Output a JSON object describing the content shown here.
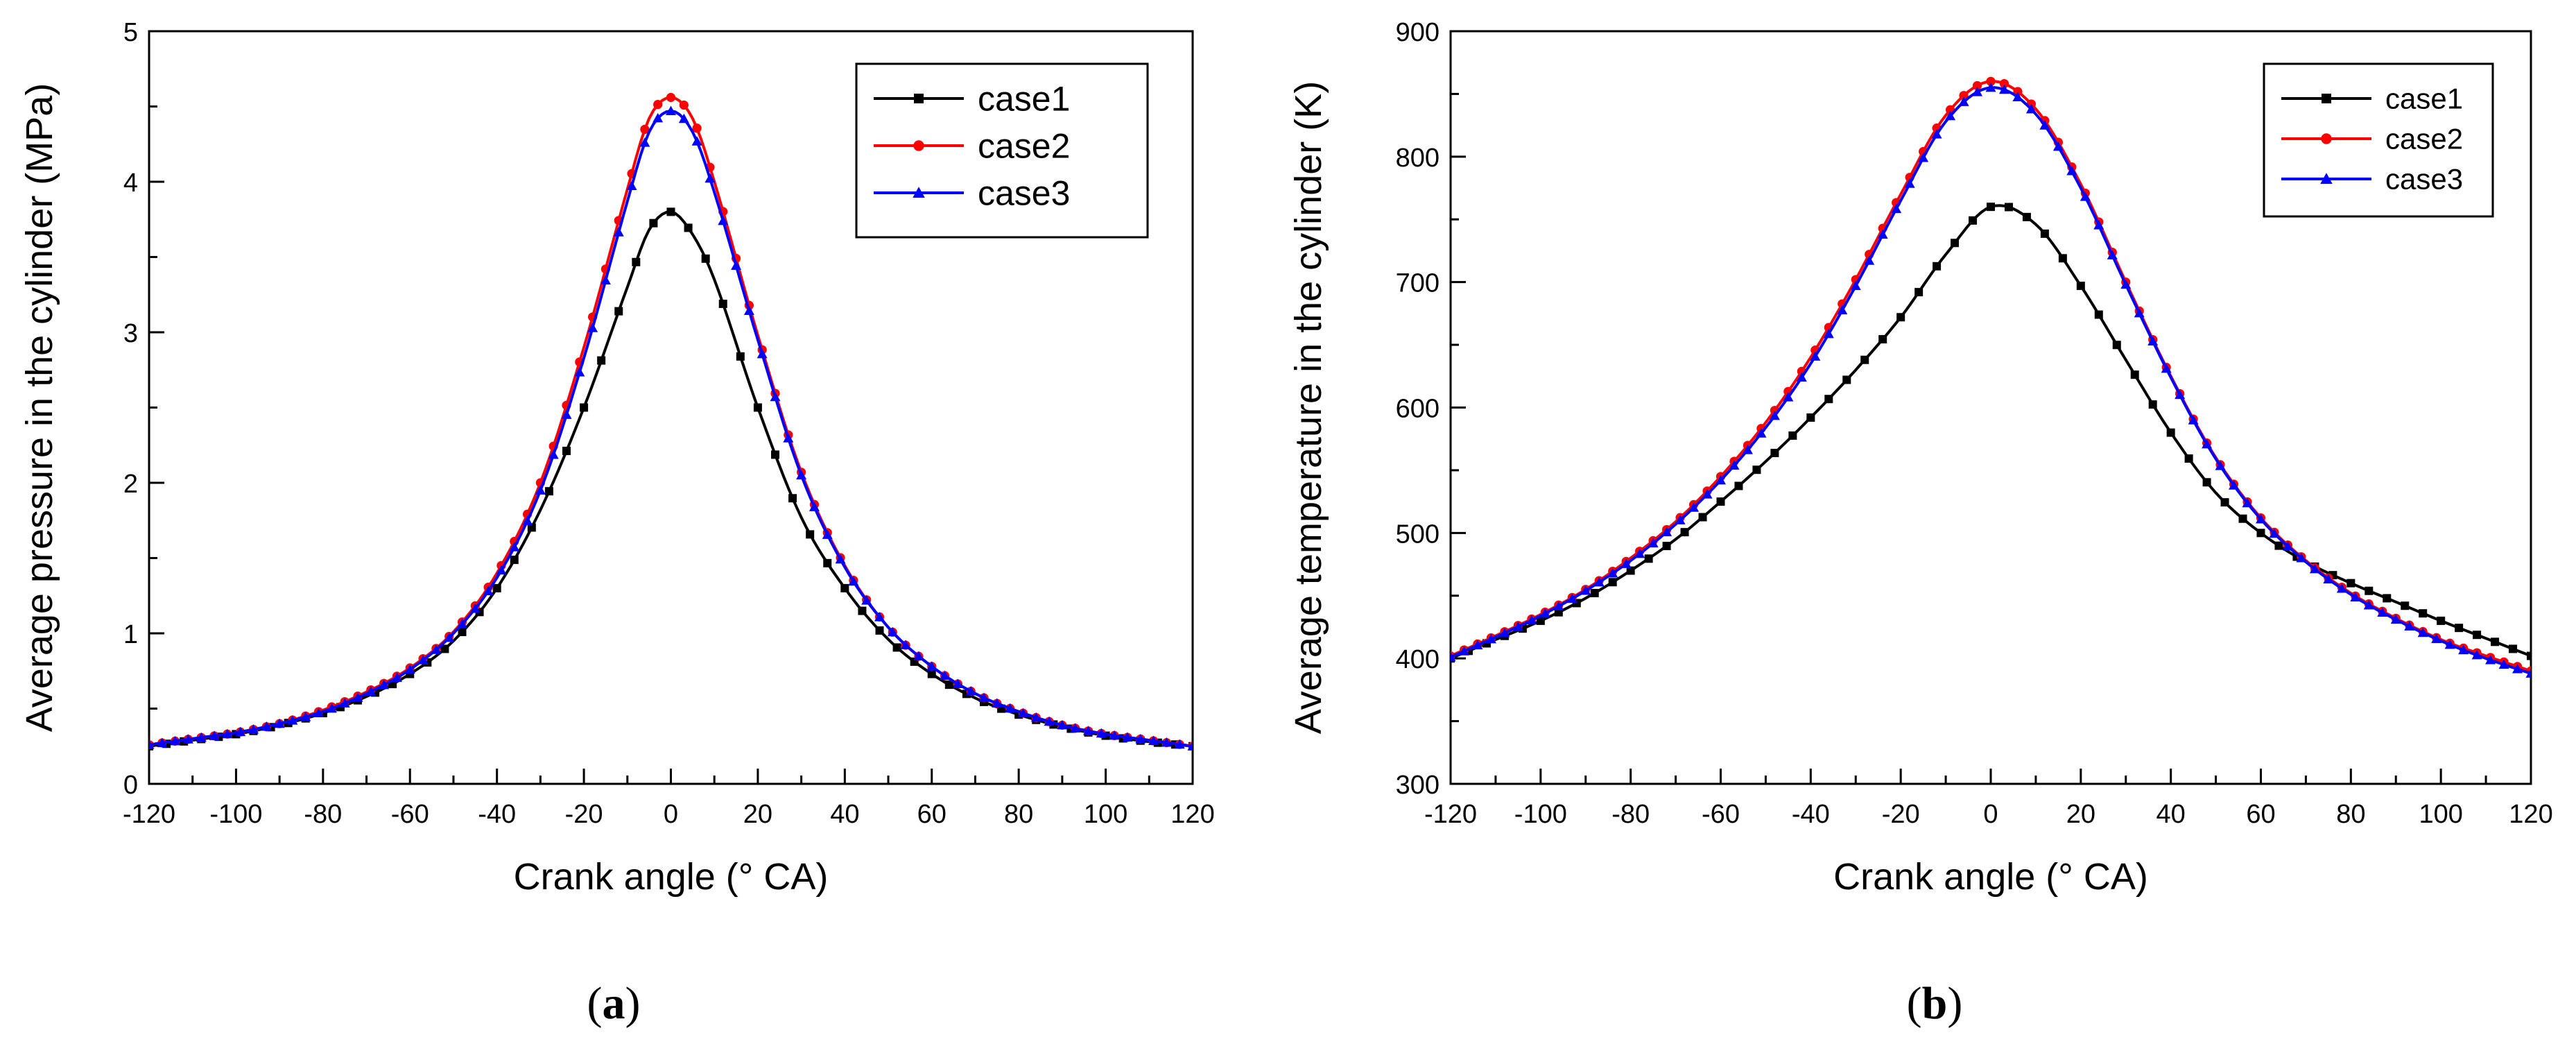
{
  "chart_data": [
    {
      "id": "a",
      "type": "line",
      "caption": "(a)",
      "caption_parts": [
        "(",
        "a",
        ")"
      ],
      "xlabel": "Crank angle (° CA)",
      "ylabel": "Average pressure in the cylinder (MPa)",
      "xlim": [
        -120,
        120
      ],
      "ylim": [
        0,
        5
      ],
      "xticks": [
        -120,
        -100,
        -80,
        -60,
        -40,
        -20,
        0,
        20,
        40,
        60,
        80,
        100,
        120
      ],
      "yticks": [
        0,
        1,
        2,
        3,
        4,
        5
      ],
      "legend_position": "top-right",
      "series": [
        {
          "name": "case1",
          "color": "#000000",
          "marker": "square",
          "x": [
            -120,
            -110,
            -100,
            -90,
            -80,
            -70,
            -60,
            -50,
            -40,
            -30,
            -20,
            -10,
            -5,
            0,
            5,
            10,
            20,
            30,
            40,
            50,
            60,
            70,
            80,
            90,
            100,
            110,
            120
          ],
          "y": [
            0.25,
            0.29,
            0.33,
            0.39,
            0.47,
            0.58,
            0.73,
            0.95,
            1.3,
            1.82,
            2.5,
            3.3,
            3.68,
            3.8,
            3.65,
            3.35,
            2.5,
            1.77,
            1.3,
            0.96,
            0.73,
            0.57,
            0.46,
            0.38,
            0.32,
            0.28,
            0.25
          ]
        },
        {
          "name": "case2",
          "color": "#ff0000",
          "marker": "circle",
          "x": [
            -120,
            -110,
            -100,
            -90,
            -80,
            -70,
            -60,
            -50,
            -40,
            -30,
            -20,
            -10,
            -5,
            0,
            5,
            10,
            20,
            30,
            40,
            50,
            60,
            70,
            80,
            90,
            100,
            110,
            120
          ],
          "y": [
            0.26,
            0.3,
            0.34,
            0.4,
            0.49,
            0.61,
            0.77,
            1.01,
            1.4,
            2.0,
            2.9,
            3.95,
            4.42,
            4.56,
            4.42,
            4.0,
            2.98,
            2.07,
            1.45,
            1.04,
            0.78,
            0.6,
            0.48,
            0.39,
            0.33,
            0.29,
            0.25
          ]
        },
        {
          "name": "case3",
          "color": "#0000ff",
          "marker": "triangle",
          "x": [
            -120,
            -110,
            -100,
            -90,
            -80,
            -70,
            -60,
            -50,
            -40,
            -30,
            -20,
            -10,
            -5,
            0,
            5,
            10,
            20,
            30,
            40,
            50,
            60,
            70,
            80,
            90,
            100,
            110,
            120
          ],
          "y": [
            0.26,
            0.3,
            0.34,
            0.4,
            0.48,
            0.6,
            0.76,
            1.0,
            1.37,
            1.95,
            2.83,
            3.87,
            4.33,
            4.47,
            4.33,
            3.93,
            2.95,
            2.05,
            1.44,
            1.04,
            0.78,
            0.6,
            0.48,
            0.39,
            0.33,
            0.29,
            0.25
          ]
        }
      ]
    },
    {
      "id": "b",
      "type": "line",
      "caption": "(b)",
      "caption_parts": [
        "(",
        "b",
        ")"
      ],
      "xlabel": "Crank angle (° CA)",
      "ylabel": "Average temperature in the cylinder (K)",
      "xlim": [
        -120,
        120
      ],
      "ylim": [
        300,
        900
      ],
      "xticks": [
        -120,
        -100,
        -80,
        -60,
        -40,
        -20,
        0,
        20,
        40,
        60,
        80,
        100,
        120
      ],
      "yticks": [
        300,
        400,
        500,
        600,
        700,
        800,
        900
      ],
      "legend_position": "top-right",
      "series": [
        {
          "name": "case1",
          "color": "#000000",
          "marker": "square",
          "x": [
            -120,
            -110,
            -100,
            -90,
            -80,
            -70,
            -60,
            -50,
            -40,
            -30,
            -20,
            -10,
            0,
            10,
            20,
            30,
            40,
            50,
            60,
            70,
            80,
            90,
            100,
            110,
            120
          ],
          "y": [
            400,
            415,
            430,
            448,
            470,
            495,
            525,
            557,
            592,
            630,
            672,
            722,
            760,
            746,
            697,
            638,
            580,
            532,
            500,
            477,
            460,
            445,
            430,
            416,
            402
          ]
        },
        {
          "name": "case2",
          "color": "#ff0000",
          "marker": "circle",
          "x": [
            -120,
            -110,
            -100,
            -90,
            -80,
            -70,
            -60,
            -50,
            -40,
            -30,
            -20,
            -10,
            0,
            10,
            20,
            30,
            40,
            50,
            60,
            70,
            80,
            90,
            100,
            110,
            120
          ],
          "y": [
            402,
            418,
            435,
            455,
            480,
            509,
            545,
            588,
            640,
            702,
            770,
            833,
            860,
            838,
            778,
            700,
            625,
            560,
            512,
            478,
            452,
            432,
            415,
            402,
            390
          ]
        },
        {
          "name": "case3",
          "color": "#0000ff",
          "marker": "triangle",
          "x": [
            -120,
            -110,
            -100,
            -90,
            -80,
            -70,
            -60,
            -50,
            -40,
            -30,
            -20,
            -10,
            0,
            10,
            20,
            30,
            40,
            50,
            60,
            70,
            80,
            90,
            100,
            110,
            120
          ],
          "y": [
            401,
            417,
            434,
            454,
            478,
            507,
            542,
            584,
            635,
            697,
            765,
            828,
            855,
            834,
            775,
            698,
            624,
            559,
            511,
            477,
            451,
            431,
            414,
            400,
            388
          ]
        }
      ]
    }
  ]
}
